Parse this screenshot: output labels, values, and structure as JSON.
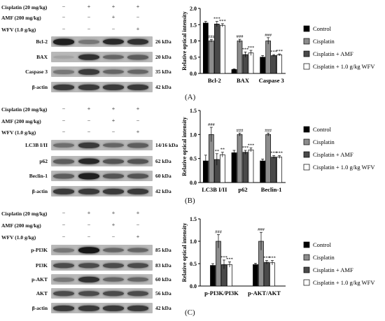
{
  "treatments": [
    {
      "label": "Cisplatin (20 mg/kg)",
      "signs": [
        "−",
        "+",
        "+",
        "+"
      ]
    },
    {
      "label": "AMF (200 mg/kg)",
      "signs": [
        "−",
        "−",
        "+",
        "−"
      ]
    },
    {
      "label": "WFV (1.0 g/kg)",
      "signs": [
        "−",
        "−",
        "−",
        "+"
      ]
    }
  ],
  "legend": [
    "Control",
    "Cisplatin",
    "Cisplatin + AMF",
    "Cisplatin + 1.0 g/kg WFV"
  ],
  "colors": {
    "control": "#000000",
    "cisplatin": "#8c8c8c",
    "amf": "#4a4a4a",
    "wfv": "#ffffff"
  },
  "panels": [
    {
      "tag": "(A)",
      "blots": [
        {
          "name": "Bcl-2",
          "kda": "26 kDa",
          "intensity": [
            0.85,
            0.35,
            0.8,
            0.75
          ]
        },
        {
          "name": "BAX",
          "kda": "20 kDa",
          "intensity": [
            0.1,
            0.75,
            0.45,
            0.5
          ]
        },
        {
          "name": "Caspase 3",
          "kda": "35 kDa",
          "intensity": [
            0.35,
            0.7,
            0.45,
            0.45
          ]
        },
        {
          "name": "β-actin",
          "kda": "42 kDa",
          "intensity": [
            0.7,
            0.7,
            0.7,
            0.7
          ]
        }
      ]
    },
    {
      "tag": "(B)",
      "blots": [
        {
          "name": "LC3B I/II",
          "kda": "14/16 kDa",
          "intensity": [
            0.4,
            0.7,
            0.45,
            0.5
          ]
        },
        {
          "name": "p62",
          "kda": "62 kDa",
          "intensity": [
            0.5,
            0.8,
            0.55,
            0.55
          ]
        },
        {
          "name": "Beclin-1",
          "kda": "60 kDa",
          "intensity": [
            0.5,
            0.85,
            0.55,
            0.55
          ]
        },
        {
          "name": "β-actin",
          "kda": "42 kDa",
          "intensity": [
            0.7,
            0.7,
            0.7,
            0.7
          ]
        }
      ]
    },
    {
      "tag": "(C)",
      "blots": [
        {
          "name": "p-PI3K",
          "kda": "85 kDa",
          "intensity": [
            0.35,
            0.9,
            0.45,
            0.45
          ]
        },
        {
          "name": "PI3K",
          "kda": "83 kDa",
          "intensity": [
            0.6,
            0.6,
            0.6,
            0.6
          ]
        },
        {
          "name": "p-AKT",
          "kda": "60 kDa",
          "intensity": [
            0.35,
            0.75,
            0.45,
            0.45
          ]
        },
        {
          "name": "AKT",
          "kda": "56 kDa",
          "intensity": [
            0.6,
            0.6,
            0.6,
            0.6
          ]
        },
        {
          "name": "β-actin",
          "kda": "42 kDa",
          "intensity": [
            0.7,
            0.7,
            0.7,
            0.7
          ]
        }
      ]
    }
  ],
  "chart_data": [
    {
      "type": "bar",
      "ylabel": "Relative optical intensity",
      "ylim": [
        0,
        2.0
      ],
      "yticks": [
        "0.0",
        "0.5",
        "1.0",
        "1.5",
        "2.0"
      ],
      "categories": [
        "Bcl-2",
        "BAX",
        "Caspase 3"
      ],
      "series": [
        {
          "name": "Control",
          "values": [
            1.55,
            0.12,
            0.5
          ],
          "errors": [
            0.05,
            0.02,
            0.05
          ]
        },
        {
          "name": "Cisplatin",
          "values": [
            1.0,
            1.0,
            1.0
          ],
          "errors": [
            0.04,
            0.05,
            0.1
          ]
        },
        {
          "name": "Cisplatin + AMF",
          "values": [
            1.52,
            0.58,
            0.55
          ],
          "errors": [
            0.08,
            0.08,
            0.03
          ]
        },
        {
          "name": "Cisplatin + 1.0 g/kg WFV",
          "values": [
            1.48,
            0.63,
            0.57
          ],
          "errors": [
            0.05,
            0.08,
            0.03
          ]
        }
      ],
      "annotations": [
        [
          "",
          "###",
          "***",
          "***"
        ],
        [
          "",
          "###",
          "***",
          "***"
        ],
        [
          "",
          "###",
          "***",
          "***"
        ]
      ],
      "legend_position": "right"
    },
    {
      "type": "bar",
      "ylabel": "Relative optical intensity",
      "ylim": [
        0,
        1.5
      ],
      "yticks": [
        "0.0",
        "0.5",
        "1.0",
        "1.5"
      ],
      "categories": [
        "LC3B I/II",
        "p62",
        "Beclin-1"
      ],
      "series": [
        {
          "name": "Control",
          "values": [
            0.45,
            0.62,
            0.45
          ],
          "errors": [
            0.12,
            0.05,
            0.04
          ]
        },
        {
          "name": "Cisplatin",
          "values": [
            1.0,
            1.0,
            1.0
          ],
          "errors": [
            0.15,
            0.03,
            0.03
          ]
        },
        {
          "name": "Cisplatin + AMF",
          "values": [
            0.48,
            0.63,
            0.53
          ],
          "errors": [
            0.12,
            0.04,
            0.03
          ]
        },
        {
          "name": "Cisplatin + 1.0 g/kg WFV",
          "values": [
            0.58,
            0.68,
            0.53
          ],
          "errors": [
            0.05,
            0.04,
            0.03
          ]
        }
      ],
      "annotations": [
        [
          "",
          "###",
          "**",
          "**"
        ],
        [
          "",
          "###",
          "***",
          "***"
        ],
        [
          "",
          "###",
          "***",
          "***"
        ]
      ],
      "legend_position": "right"
    },
    {
      "type": "bar",
      "ylabel": "Relative optical intensity",
      "ylim": [
        0,
        1.5
      ],
      "yticks": [
        "0.0",
        "0.5",
        "1.0",
        "1.5"
      ],
      "categories": [
        "p-PI3K/PI3K",
        "p-AKT/AKT"
      ],
      "series": [
        {
          "name": "Control",
          "values": [
            0.46,
            0.48
          ],
          "errors": [
            0.04,
            0.03
          ]
        },
        {
          "name": "Cisplatin",
          "values": [
            1.0,
            1.0
          ],
          "errors": [
            0.15,
            0.2
          ]
        },
        {
          "name": "Cisplatin + AMF",
          "values": [
            0.48,
            0.53
          ],
          "errors": [
            0.1,
            0.04
          ]
        },
        {
          "name": "Cisplatin + 1.0 g/kg WFV",
          "values": [
            0.48,
            0.52
          ],
          "errors": [
            0.06,
            0.05
          ]
        }
      ],
      "annotations": [
        [
          "",
          "###",
          "***",
          "***"
        ],
        [
          "",
          "###",
          "***",
          "***"
        ]
      ],
      "legend_position": "right"
    }
  ]
}
